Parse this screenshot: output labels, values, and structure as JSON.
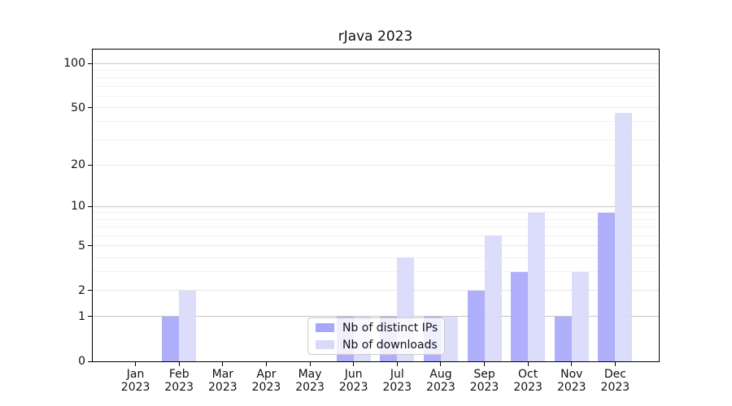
{
  "figure": {
    "title": "rJava 2023"
  },
  "chart_data": {
    "type": "bar",
    "title": "rJava 2023",
    "x": {
      "months": [
        "Jan",
        "Feb",
        "Mar",
        "Apr",
        "May",
        "Jun",
        "Jul",
        "Aug",
        "Sep",
        "Oct",
        "Nov",
        "Dec"
      ],
      "year": "2023"
    },
    "series": [
      {
        "name": "Nb of distinct IPs",
        "color": "#a8a8fb",
        "values": [
          0,
          1,
          0,
          0,
          0,
          1,
          1,
          1,
          2,
          3,
          1,
          9
        ]
      },
      {
        "name": "Nb of downloads",
        "color": "#d9d9fb",
        "values": [
          0,
          2,
          0,
          0,
          0,
          1,
          4,
          1,
          6,
          9,
          3,
          46
        ]
      }
    ],
    "yscale": "log1p",
    "ylim": [
      0,
      126
    ],
    "yticks": [
      0,
      1,
      2,
      5,
      10,
      20,
      50,
      100
    ],
    "ytick_decades": [
      1,
      10,
      100
    ],
    "minor_gridlines": [
      3,
      4,
      6,
      7,
      8,
      9,
      30,
      40,
      60,
      70,
      80,
      90
    ],
    "grid": true,
    "legend": {
      "position": "bottom-center",
      "items": [
        "Nb of distinct IPs",
        "Nb of downloads"
      ]
    }
  }
}
